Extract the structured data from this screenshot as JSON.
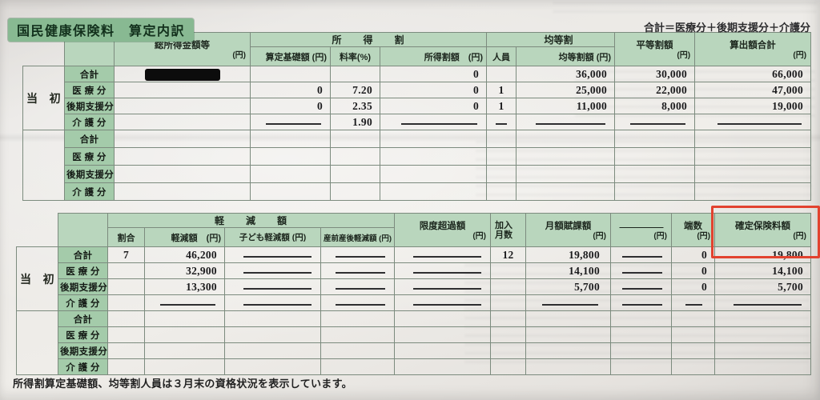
{
  "title": "国民健康保険料　算定内訳",
  "top_note": "合計＝医療分＋後期支援分＋介護分",
  "footer_note": "所得割算定基礎額、均等割人員は３月末の資格状況を表示しています。",
  "colors": {
    "title_green": "#88b992",
    "header_green": "#b9d6bd",
    "label_green": "#a4cbaa",
    "highlight_red": "#e2422f",
    "paper": "#eae7e4",
    "redaction_black": "#0c0c0c"
  },
  "table1": {
    "header": {
      "total_income": "総所得金額等",
      "total_income_unit": "(円)",
      "income_levy_group": "所　　得　　割",
      "calc_base": "算定基礎額 (円)",
      "rate": "料率(%)",
      "income_levy_amount": "所得割額　(円)",
      "per_capita_group": "均等割",
      "members": "人員",
      "per_capita_amount": "均等割額 (円)",
      "per_household": "平等割額",
      "per_household_unit": "(円)",
      "calc_total": "算出額合計",
      "calc_total_unit": "(円)"
    },
    "groups": [
      {
        "period": "当　初",
        "rows": [
          {
            "label": "合計",
            "cells": [
              "#REDACTED#",
              "",
              "",
              "0",
              "",
              "36,000",
              "30,000",
              "66,000"
            ]
          },
          {
            "label": "医 療 分",
            "cells": [
              "",
              "0",
              "7.20",
              "0",
              "1",
              "25,000",
              "22,000",
              "47,000"
            ]
          },
          {
            "label": "後期支援分",
            "cells": [
              "",
              "0",
              "2.35",
              "0",
              "1",
              "11,000",
              "8,000",
              "19,000"
            ]
          },
          {
            "label": "介 護 分",
            "cells": [
              "",
              "———",
              "1.90",
              "———",
              "—",
              "———",
              "———",
              "———"
            ]
          }
        ]
      },
      {
        "period": "",
        "rows": [
          {
            "label": "合計",
            "cells": [
              "",
              "",
              "",
              "",
              "",
              "",
              "",
              ""
            ]
          },
          {
            "label": "医 療 分",
            "cells": [
              "",
              "",
              "",
              "",
              "",
              "",
              "",
              ""
            ]
          },
          {
            "label": "後期支援分",
            "cells": [
              "",
              "",
              "",
              "",
              "",
              "",
              "",
              ""
            ]
          },
          {
            "label": "介 護 分",
            "cells": [
              "",
              "",
              "",
              "",
              "",
              "",
              "",
              ""
            ]
          }
        ]
      }
    ]
  },
  "table2": {
    "header": {
      "reduction_group": "軽　　減　　額",
      "ratio": "割合",
      "reduction_amount": "軽減額　(円)",
      "child_reduction": "子ども軽減額 (円)",
      "prenatal_reduction": "産前産後軽減額 (円)",
      "limit_excess": "限度超過額",
      "limit_excess_unit": "(円)",
      "months_joined_line1": "加入",
      "months_joined_line2": "月数",
      "monthly_levy": "月額賦課額",
      "monthly_levy_unit": "(円)",
      "blank_column": "――――――",
      "blank_column_unit": "(円)",
      "fraction": "端数",
      "fraction_unit": "(円)",
      "confirmed_premium": "確定保険料額",
      "confirmed_premium_unit": "(円)"
    },
    "groups": [
      {
        "period": "当　初",
        "rows": [
          {
            "label": "合計",
            "cells": [
              "7",
              "46,200",
              "———",
              "———",
              "———",
              "12",
              "19,800",
              "———",
              "0",
              "19,800"
            ]
          },
          {
            "label": "医 療 分",
            "cells": [
              "",
              "32,900",
              "———",
              "———",
              "———",
              "",
              "14,100",
              "———",
              "0",
              "14,100"
            ]
          },
          {
            "label": "後期支援分",
            "cells": [
              "",
              "13,300",
              "———",
              "———",
              "———",
              "",
              "5,700",
              "———",
              "0",
              "5,700"
            ]
          },
          {
            "label": "介 護 分",
            "cells": [
              "",
              "———",
              "———",
              "———",
              "———",
              "",
              "———",
              "———",
              "—",
              "———"
            ]
          }
        ]
      },
      {
        "period": "",
        "rows": [
          {
            "label": "合計",
            "cells": [
              "",
              "",
              "",
              "",
              "",
              "",
              "",
              "",
              "",
              ""
            ]
          },
          {
            "label": "医 療 分",
            "cells": [
              "",
              "",
              "",
              "",
              "",
              "",
              "",
              "",
              "",
              ""
            ]
          },
          {
            "label": "後期支援分",
            "cells": [
              "",
              "",
              "",
              "",
              "",
              "",
              "",
              "",
              "",
              ""
            ]
          },
          {
            "label": "介 護 分",
            "cells": [
              "",
              "",
              "",
              "",
              "",
              "",
              "",
              "",
              "",
              ""
            ]
          }
        ]
      }
    ]
  }
}
